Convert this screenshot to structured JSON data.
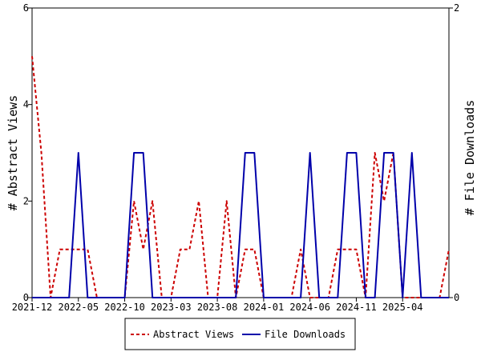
{
  "chart_data": {
    "type": "line",
    "x": [
      "2021-12",
      "2022-01",
      "2022-02",
      "2022-03",
      "2022-04",
      "2022-05",
      "2022-06",
      "2022-07",
      "2022-08",
      "2022-09",
      "2022-10",
      "2022-11",
      "2022-12",
      "2023-01",
      "2023-02",
      "2023-03",
      "2023-04",
      "2023-05",
      "2023-06",
      "2023-07",
      "2023-08",
      "2023-09",
      "2023-10",
      "2023-11",
      "2023-12",
      "2024-01",
      "2024-02",
      "2024-03",
      "2024-04",
      "2024-05",
      "2024-06",
      "2024-07",
      "2024-08",
      "2024-09",
      "2024-10",
      "2024-11",
      "2024-12",
      "2025-01",
      "2025-02",
      "2025-03",
      "2025-04",
      "2025-05",
      "2025-06",
      "2025-07",
      "2025-08",
      "2025-09"
    ],
    "xticks": [
      "2021-12",
      "2022-05",
      "2022-10",
      "2023-03",
      "2023-08",
      "2024-01",
      "2024-06",
      "2024-11",
      "2025-04"
    ],
    "ylabel_left": "# Abstract Views",
    "ylabel_right": "# File Downloads",
    "ylim_left": [
      0,
      6
    ],
    "yticks_left": [
      0,
      2,
      4,
      6
    ],
    "ylim_right": [
      0,
      2
    ],
    "yticks_right": [
      0,
      2
    ],
    "legend_position": "bottom",
    "series": [
      {
        "name": "Abstract Views",
        "axis": "left",
        "color": "#cc0000",
        "dash": true,
        "values": [
          5,
          3,
          0,
          1,
          1,
          1,
          1,
          0,
          0,
          0,
          0,
          2,
          1,
          2,
          0,
          0,
          1,
          1,
          2,
          0,
          0,
          2,
          0,
          1,
          1,
          0,
          0,
          0,
          0,
          1,
          0,
          0,
          0,
          1,
          1,
          1,
          0,
          3,
          2,
          3,
          0,
          0,
          0,
          0,
          0,
          1
        ]
      },
      {
        "name": "File Downloads",
        "axis": "right",
        "color": "#0000aa",
        "dash": false,
        "values": [
          0,
          0,
          0,
          0,
          0,
          1,
          0,
          0,
          0,
          0,
          0,
          1,
          1,
          0,
          0,
          0,
          0,
          0,
          0,
          0,
          0,
          0,
          0,
          1,
          1,
          0,
          0,
          0,
          0,
          0,
          1,
          0,
          0,
          0,
          1,
          1,
          0,
          0,
          1,
          1,
          0,
          1,
          0,
          0,
          0,
          0
        ]
      }
    ]
  }
}
